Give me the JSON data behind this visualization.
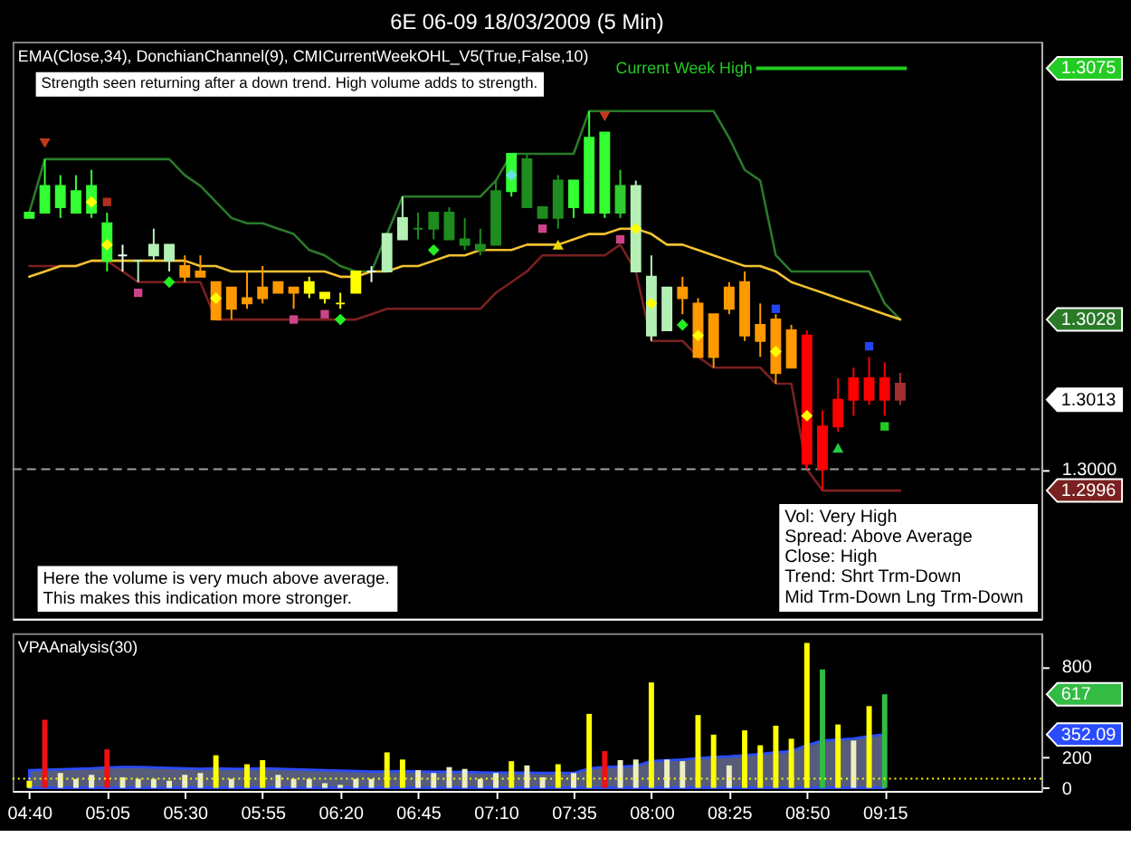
{
  "chart_data": [
    {
      "type": "candlestick",
      "title": "6E 06-09  18/03/2009 (5 Min)",
      "subtitle": "EMA(Close,34), DonchianChannel(9), CMICurrentWeekOHL_V5(True,False,10)",
      "categories": [
        null,
        null,
        null,
        null,
        null,
        null,
        null,
        null,
        null,
        null,
        null,
        null,
        null,
        null,
        null,
        null,
        null,
        null,
        null,
        null,
        null,
        null,
        null,
        null,
        null,
        null,
        null,
        null,
        null,
        null,
        null,
        null,
        null,
        null,
        null,
        null,
        null,
        null,
        null,
        null,
        null,
        null,
        null,
        null,
        null,
        null,
        null,
        null,
        null,
        null,
        null,
        null,
        null,
        null,
        null,
        null,
        null,
        null,
        null,
        null,
        null,
        null,
        null,
        null,
        null
      ],
      "ohlc": [
        [
          1.3047,
          1.3048,
          1.3047,
          1.3048
        ],
        [
          1.3048,
          1.3058,
          1.3048,
          1.3053
        ],
        [
          1.3049,
          1.3055,
          1.3047,
          1.3053
        ],
        [
          1.3048,
          1.3055,
          1.3048,
          1.3052
        ],
        [
          1.3048,
          1.3056,
          1.3047,
          1.3053
        ],
        [
          1.3039,
          1.3048,
          1.3037,
          1.3046
        ],
        [
          1.304,
          1.3042,
          1.3037,
          1.304
        ],
        [
          1.3039,
          1.3039,
          1.3035,
          1.3039
        ],
        [
          1.304,
          1.3045,
          1.3039,
          1.3042
        ],
        [
          1.3039,
          1.3042,
          1.3037,
          1.3042
        ],
        [
          1.3038,
          1.304,
          1.3035,
          1.3036
        ],
        [
          1.3037,
          1.304,
          1.3036,
          1.3036
        ],
        [
          1.3035,
          1.3035,
          1.3028,
          1.3028
        ],
        [
          1.3034,
          1.3034,
          1.3028,
          1.303
        ],
        [
          1.3032,
          1.3037,
          1.303,
          1.3031
        ],
        [
          1.3034,
          1.3038,
          1.3031,
          1.3032
        ],
        [
          1.3035,
          1.3035,
          1.3033,
          1.3033
        ],
        [
          1.3034,
          1.3034,
          1.303,
          1.3033
        ],
        [
          1.3035,
          1.3036,
          1.3032,
          1.3033
        ],
        [
          1.3033,
          1.3033,
          1.3031,
          1.3032
        ],
        [
          1.3031,
          1.3033,
          1.303,
          1.3031
        ],
        [
          1.3037,
          1.3037,
          1.3033,
          1.3033
        ],
        [
          1.3037,
          1.3038,
          1.3035,
          1.3037
        ],
        [
          1.3037,
          1.3044,
          1.3037,
          1.3044
        ],
        [
          1.3043,
          1.3051,
          1.3043,
          1.3047
        ],
        [
          1.3045,
          1.3048,
          1.3043,
          1.3045
        ],
        [
          1.3045,
          1.3048,
          1.3043,
          1.3048
        ],
        [
          1.3043,
          1.3049,
          1.3043,
          1.3048
        ],
        [
          1.3042,
          1.3047,
          1.3041,
          1.3043
        ],
        [
          1.3041,
          1.3045,
          1.304,
          1.3042
        ],
        [
          1.3042,
          1.3054,
          1.3042,
          1.3052
        ],
        [
          1.3052,
          1.3059,
          1.3051,
          1.3059
        ],
        [
          1.3049,
          1.3059,
          1.3049,
          1.3058
        ],
        [
          1.3047,
          1.3049,
          1.3047,
          1.3049
        ],
        [
          1.3047,
          1.3055,
          1.3045,
          1.3054
        ],
        [
          1.3049,
          1.3054,
          1.3047,
          1.3054
        ],
        [
          1.3048,
          1.3067,
          1.3048,
          1.3062
        ],
        [
          1.3048,
          1.3063,
          1.3047,
          1.3063
        ],
        [
          1.3048,
          1.3056,
          1.3047,
          1.3053
        ],
        [
          1.3037,
          1.3054,
          1.3037,
          1.3053
        ],
        [
          1.3025,
          1.304,
          1.3024,
          1.3036
        ],
        [
          1.3026,
          1.3034,
          1.3026,
          1.3034
        ],
        [
          1.3034,
          1.3036,
          1.3029,
          1.3032
        ],
        [
          1.3031,
          1.3032,
          1.3021,
          1.3021
        ],
        [
          1.3029,
          1.3029,
          1.3019,
          1.3021
        ],
        [
          1.3034,
          1.3035,
          1.3029,
          1.303
        ],
        [
          1.3035,
          1.3037,
          1.3024,
          1.3025
        ],
        [
          1.3027,
          1.3031,
          1.3021,
          1.3024
        ],
        [
          1.3028,
          1.3029,
          1.3016,
          1.3018
        ],
        [
          1.3026,
          1.3027,
          1.3019,
          1.3019
        ],
        [
          1.3025,
          1.3026,
          1.3,
          1.3001
        ],
        [
          1.3008,
          1.3011,
          1.2996,
          1.3
        ],
        [
          1.3013,
          1.3017,
          1.3007,
          1.3008
        ],
        [
          1.3017,
          1.3019,
          1.301,
          1.3013
        ],
        [
          1.3017,
          1.3021,
          1.3012,
          1.3013
        ],
        [
          1.3017,
          1.302,
          1.301,
          1.3013
        ],
        [
          1.3016,
          1.3018,
          1.3012,
          1.3013
        ],
        null,
        null,
        null,
        null,
        null,
        null,
        null,
        null
      ],
      "colors": [
        "#33ff33",
        "#33ff33",
        "#33ff33",
        "#33ff33",
        "#33ff33",
        "#33ff33",
        "#e6ffe6",
        "#b4f0b4",
        "#b4f0b4",
        "#b4f0b4",
        "#ff9900",
        "#ff9900",
        "#ff9900",
        "#ff9900",
        "#ff9900",
        "#ff9900",
        "#ff9900",
        "#ff9900",
        "#ffff00",
        "#ffff00",
        "#ffff00",
        "#ffff00",
        "#e6ffe6",
        "#b4f0b4",
        "#b4f0b4",
        "#1e8c1e",
        "#1e8c1e",
        "#1e8c1e",
        "#1e8c1e",
        "#1e8c1e",
        "#1e8c1e",
        "#33ff33",
        "#1e8c1e",
        "#1e8c1e",
        "#1e8c1e",
        "#33ff33",
        "#33ff33",
        "#33ff33",
        "#2ecc2e",
        "#b4f0b4",
        "#b4f0b4",
        "#b4f0b4",
        "#ff9900",
        "#ff9900",
        "#ff9900",
        "#ff9900",
        "#ff9900",
        "#ff9900",
        "#ff9900",
        "#ff9900",
        "#ff0000",
        "#ff0000",
        "#ff0000",
        "#ff0000",
        "#ff0000",
        "#ff0000",
        "#a03030",
        null,
        null,
        null,
        null,
        null,
        null,
        null,
        null
      ],
      "series": [
        {
          "type": "line",
          "color": "#2a7a2a",
          "values": [
            1.3048,
            1.3058,
            1.3058,
            1.3058,
            1.3058,
            1.3058,
            1.3058,
            1.3058,
            1.3058,
            1.3058,
            1.3055,
            1.3053,
            1.305,
            1.3047,
            1.3046,
            1.3046,
            1.3045,
            1.3044,
            1.3041,
            1.304,
            1.3038,
            1.3037,
            1.3037,
            1.3044,
            1.3051,
            1.3051,
            1.3051,
            1.3051,
            1.3051,
            1.3051,
            1.3054,
            1.3059,
            1.3059,
            1.3059,
            1.3059,
            1.3059,
            1.3067,
            1.3067,
            1.3067,
            1.3067,
            1.3067,
            1.3067,
            1.3067,
            1.3067,
            1.3067,
            1.3062,
            1.3056,
            1.3054,
            1.304,
            1.3037,
            1.3037,
            1.3037,
            1.3037,
            1.3037,
            1.3037,
            1.3031,
            1.3028,
            null,
            null,
            null,
            null,
            null,
            null,
            null,
            null
          ]
        },
        {
          "type": "line",
          "color": "#7a2020",
          "values": [
            1.3038,
            1.3038,
            1.3038,
            1.3038,
            1.3039,
            1.3039,
            1.3037,
            1.3035,
            1.3035,
            1.3035,
            1.3035,
            1.3035,
            1.3028,
            1.3028,
            1.3028,
            1.3028,
            1.3028,
            1.3028,
            1.3028,
            1.3028,
            1.3028,
            1.3028,
            1.3029,
            1.303,
            1.303,
            1.303,
            1.303,
            1.303,
            1.303,
            1.303,
            1.3033,
            1.3035,
            1.3037,
            1.304,
            1.304,
            1.304,
            1.304,
            1.304,
            1.3042,
            1.3037,
            1.3024,
            1.3024,
            1.3024,
            1.3021,
            1.3019,
            1.3019,
            1.3019,
            1.3019,
            1.3016,
            1.3016,
            1.3,
            1.2996,
            1.2996,
            1.2996,
            1.2996,
            1.2996,
            1.2996,
            null,
            null,
            null,
            null,
            null,
            null,
            null,
            null
          ]
        },
        {
          "type": "line",
          "color": "#f2c230",
          "values": [
            1.3036,
            1.3037,
            1.3038,
            1.3038,
            1.3039,
            1.3039,
            1.3039,
            1.3039,
            1.3039,
            1.3039,
            1.3039,
            1.3038,
            1.3038,
            1.3037,
            1.3037,
            1.3037,
            1.3037,
            1.3037,
            1.3037,
            1.3037,
            1.3036,
            1.3036,
            1.3037,
            1.3037,
            1.3038,
            1.3038,
            1.3039,
            1.304,
            1.304,
            1.3041,
            1.3041,
            1.3041,
            1.3042,
            1.3042,
            1.3042,
            1.3043,
            1.3044,
            1.3044,
            1.3045,
            1.3045,
            1.3044,
            1.3042,
            1.3042,
            1.3041,
            1.304,
            1.3039,
            1.3038,
            1.3038,
            1.3037,
            1.3035,
            1.3034,
            1.3033,
            1.3032,
            1.3031,
            1.303,
            1.3029,
            1.3028,
            null,
            null,
            null,
            null,
            null,
            null,
            null,
            null
          ]
        },
        {
          "type": "scatter",
          "marker": "diamond",
          "color": "#ffff00",
          "values": [
            null,
            null,
            null,
            null,
            1.305,
            1.3042,
            null,
            null,
            null,
            null,
            null,
            null,
            1.3032,
            null,
            null,
            null,
            null,
            null,
            null,
            null,
            null,
            null,
            null,
            null,
            null,
            null,
            null,
            null,
            null,
            null,
            null,
            null,
            null,
            null,
            null,
            null,
            null,
            null,
            null,
            1.3045,
            1.3031,
            null,
            null,
            1.3025,
            null,
            null,
            null,
            null,
            1.3022,
            null,
            1.301,
            null,
            null,
            null,
            null,
            null,
            null,
            null,
            null,
            null,
            null,
            null,
            null,
            null,
            null
          ]
        },
        {
          "type": "scatter",
          "marker": "diamond",
          "color": "#22ee22",
          "values": [
            null,
            null,
            null,
            null,
            null,
            null,
            null,
            null,
            null,
            1.3035,
            null,
            null,
            null,
            null,
            null,
            null,
            null,
            null,
            null,
            null,
            1.3028,
            null,
            null,
            null,
            null,
            null,
            1.3041,
            null,
            null,
            null,
            null,
            null,
            null,
            null,
            null,
            null,
            null,
            null,
            null,
            null,
            null,
            null,
            1.3027,
            null,
            null,
            null,
            null,
            null,
            null,
            null,
            null,
            null,
            null,
            null,
            null,
            null,
            null,
            null,
            null,
            null,
            null,
            null,
            null,
            null,
            null
          ]
        },
        {
          "type": "scatter",
          "marker": "square",
          "color": "#cc4488",
          "values": [
            null,
            null,
            null,
            null,
            null,
            null,
            null,
            1.3033,
            null,
            null,
            null,
            null,
            null,
            null,
            null,
            null,
            null,
            1.3028,
            null,
            1.3029,
            null,
            null,
            null,
            null,
            null,
            null,
            null,
            null,
            null,
            null,
            null,
            null,
            null,
            1.3045,
            null,
            null,
            null,
            null,
            1.3043,
            null,
            null,
            null,
            null,
            null,
            null,
            null,
            null,
            null,
            null,
            null,
            null,
            null,
            null,
            null,
            null,
            null,
            null,
            null,
            null,
            null,
            null,
            null,
            null,
            null,
            null
          ]
        },
        {
          "type": "scatter",
          "marker": "square",
          "color": "#b03020",
          "values": [
            null,
            null,
            null,
            null,
            null,
            1.305,
            null,
            null,
            null,
            null,
            null,
            null,
            null,
            null,
            null,
            null,
            null,
            null,
            null,
            null,
            null,
            null,
            null,
            null,
            null,
            null,
            null,
            null,
            null,
            null,
            null,
            null,
            null,
            null,
            null,
            null,
            null,
            null,
            null,
            null,
            null,
            null,
            null,
            null,
            null,
            null,
            null,
            null,
            null,
            null,
            null,
            null,
            null,
            null,
            null,
            null,
            null,
            null,
            null,
            null,
            null,
            null,
            null,
            null,
            null
          ]
        },
        {
          "type": "scatter",
          "marker": "square",
          "color": "#2244ee",
          "values": [
            null,
            null,
            null,
            null,
            null,
            null,
            null,
            null,
            null,
            null,
            null,
            null,
            null,
            null,
            null,
            null,
            null,
            null,
            null,
            null,
            null,
            null,
            null,
            null,
            null,
            null,
            null,
            null,
            null,
            null,
            null,
            null,
            null,
            null,
            null,
            null,
            null,
            null,
            null,
            null,
            null,
            null,
            null,
            null,
            null,
            null,
            null,
            null,
            1.303,
            null,
            null,
            null,
            null,
            null,
            1.3023,
            null,
            null,
            null,
            null,
            null,
            null,
            null,
            null,
            null,
            null
          ]
        },
        {
          "type": "scatter",
          "marker": "square",
          "color": "#22cc22",
          "values": [
            null,
            null,
            null,
            null,
            null,
            null,
            null,
            null,
            null,
            null,
            null,
            null,
            null,
            null,
            null,
            null,
            null,
            null,
            null,
            null,
            null,
            null,
            null,
            null,
            null,
            null,
            null,
            null,
            null,
            null,
            null,
            null,
            null,
            null,
            null,
            null,
            null,
            null,
            null,
            null,
            null,
            null,
            null,
            null,
            null,
            null,
            null,
            null,
            null,
            null,
            null,
            null,
            null,
            null,
            null,
            1.3008,
            null,
            null,
            null,
            null,
            null,
            null,
            null,
            null,
            null
          ]
        },
        {
          "type": "scatter",
          "marker": "triangle",
          "color": "#22cc44",
          "values": [
            null,
            null,
            null,
            null,
            null,
            null,
            null,
            null,
            null,
            null,
            null,
            null,
            null,
            null,
            null,
            null,
            null,
            null,
            null,
            null,
            null,
            null,
            null,
            null,
            null,
            null,
            null,
            null,
            null,
            null,
            null,
            null,
            null,
            null,
            null,
            null,
            null,
            null,
            null,
            null,
            null,
            null,
            null,
            null,
            null,
            null,
            null,
            null,
            null,
            null,
            null,
            null,
            1.3004,
            null,
            null,
            null,
            null,
            null,
            null,
            null,
            null,
            null,
            null,
            null,
            null
          ]
        },
        {
          "type": "scatter",
          "marker": "triangle-down",
          "color": "#c03a1a",
          "values": [
            null,
            1.3061,
            null,
            null,
            null,
            null,
            null,
            null,
            null,
            null,
            null,
            null,
            null,
            null,
            null,
            null,
            null,
            null,
            null,
            null,
            null,
            null,
            null,
            null,
            null,
            null,
            null,
            null,
            null,
            null,
            null,
            null,
            null,
            null,
            null,
            null,
            null,
            1.3066,
            null,
            null,
            null,
            null,
            null,
            null,
            null,
            null,
            null,
            null,
            null,
            null,
            null,
            null,
            null,
            null,
            null,
            null,
            null,
            null,
            null,
            null,
            null,
            null,
            null,
            null,
            null
          ]
        },
        {
          "type": "scatter",
          "marker": "diamond",
          "color": "#66e0e0",
          "values": [
            null,
            null,
            null,
            null,
            null,
            null,
            null,
            null,
            null,
            null,
            null,
            null,
            null,
            null,
            null,
            null,
            null,
            null,
            null,
            null,
            null,
            null,
            null,
            null,
            null,
            null,
            null,
            null,
            null,
            null,
            null,
            1.3055,
            null,
            null,
            null,
            null,
            null,
            null,
            null,
            null,
            null,
            null,
            null,
            null,
            null,
            null,
            null,
            null,
            null,
            null,
            null,
            null,
            null,
            null,
            null,
            null,
            null,
            null,
            null,
            null,
            null,
            null,
            null,
            null,
            null
          ]
        },
        {
          "type": "scatter",
          "marker": "triangle",
          "color": "#e8d800",
          "values": [
            null,
            null,
            null,
            null,
            null,
            null,
            null,
            null,
            null,
            null,
            null,
            null,
            null,
            null,
            null,
            null,
            null,
            null,
            null,
            null,
            null,
            null,
            null,
            null,
            null,
            null,
            null,
            null,
            null,
            null,
            null,
            null,
            null,
            null,
            1.3042,
            null,
            null,
            null,
            null,
            null,
            null,
            null,
            null,
            null,
            null,
            null,
            null,
            null,
            null,
            null,
            null,
            null,
            null,
            null,
            null,
            null,
            null,
            null,
            null,
            null,
            null,
            null,
            null,
            null,
            null
          ]
        }
      ],
      "ylim": [
        1.2972,
        1.308
      ],
      "yticks": [
        1.2996,
        {
          "value": 1.3,
          "label": "1.3000"
        },
        1.3013,
        1.3028,
        1.3075
      ],
      "ref_lines": [
        {
          "axis": "y",
          "value": 1.3075,
          "label": "Current Week High",
          "color": "#22cc22"
        },
        {
          "axis": "y",
          "value": 1.3,
          "color": "#a0a0a0",
          "line_style": "dashed"
        }
      ],
      "annotations": [
        "Strength seen returning after a down trend. High volume adds to strength.",
        "Here the volume is very much above average.\nThis makes this indication more stronger.",
        "Vol: Very High\nSpread: Above Average\nClose: High\nTrend:  Shrt Trm-Down\nMid Trm-Down  Lng Trm-Down"
      ]
    },
    {
      "type": "bar",
      "title": "VPAAnalysis(30)",
      "categories": [
        "04:40",
        null,
        null,
        null,
        null,
        "05:05",
        null,
        null,
        null,
        null,
        "05:30",
        null,
        null,
        null,
        null,
        "05:55",
        null,
        null,
        null,
        null,
        "06:20",
        null,
        null,
        null,
        null,
        "06:45",
        null,
        null,
        null,
        null,
        "07:10",
        null,
        null,
        null,
        null,
        "07:35",
        null,
        null,
        null,
        null,
        "08:00",
        null,
        null,
        null,
        null,
        "08:25",
        null,
        null,
        null,
        null,
        "08:50",
        null,
        null,
        null,
        null,
        "09:15",
        null,
        null,
        null,
        null,
        null,
        null,
        null,
        null,
        null
      ],
      "series": [
        {
          "type": "bar",
          "values": [
            47,
            449,
            98,
            59,
            86,
            254,
            70,
            59,
            59,
            47,
            86,
            98,
            215,
            59,
            156,
            183,
            86,
            59,
            59,
            31,
            20,
            59,
            59,
            234,
            187,
            117,
            98,
            137,
            125,
            59,
            98,
            176,
            148,
            70,
            156,
            98,
            488,
            242,
            183,
            187,
            695,
            187,
            176,
            480,
            351,
            148,
            379,
            281,
            410,
            324,
            956,
            781,
            418,
            312,
            539,
            617,
            null,
            null,
            null,
            null,
            null,
            null,
            null,
            null,
            null
          ],
          "colors": [
            "#ffff00",
            "#ee1111",
            "#eeeec0",
            "#eeeec0",
            "#eeeec0",
            "#ee1111",
            "#eeeec0",
            "#eeeec0",
            "#eeeec0",
            "#eeeec0",
            "#eeeec0",
            "#eeeec0",
            "#ffff00",
            "#eeeec0",
            "#ffff00",
            "#ffff00",
            "#eeeec0",
            "#eeeec0",
            "#eeeec0",
            "#eeeec0",
            "#eeeec0",
            "#eeeec0",
            "#eeeec0",
            "#ffff00",
            "#ffff00",
            "#eeeec0",
            "#eeeec0",
            "#eeeec0",
            "#eeeec0",
            "#eeeec0",
            "#eeeec0",
            "#ffff00",
            "#eeeec0",
            "#eeeec0",
            "#ffff00",
            "#eeeec0",
            "#ffff00",
            "#ee1111",
            "#eeeec0",
            "#eeeec0",
            "#ffff00",
            "#eeeec0",
            "#eeeec0",
            "#ffff00",
            "#ffff00",
            "#eeeec0",
            "#ffff00",
            "#ffff00",
            "#ffff00",
            "#ffff00",
            "#ffff00",
            "#33bb44",
            "#ffff00",
            "#eeeec0",
            "#ffff00",
            "#33bb44",
            "#eeeec0",
            null,
            null,
            null,
            null,
            null,
            null,
            null,
            null
          ]
        },
        {
          "type": "area",
          "color": "#2a4cff",
          "values": [
            117,
            120,
            123,
            126,
            128,
            135,
            137,
            137,
            135,
            132,
            128,
            126,
            128,
            126,
            126,
            128,
            125,
            122,
            120,
            117,
            114,
            110,
            107,
            108,
            110,
            108,
            106,
            106,
            105,
            102,
            100,
            100,
            100,
            98,
            98,
            98,
            128,
            137,
            140,
            145,
            176,
            182,
            187,
            195,
            203,
            207,
            215,
            222,
            234,
            242,
            281,
            312,
            318,
            325,
            340,
            352.09,
            null,
            null,
            null,
            null,
            null,
            null,
            null,
            null,
            null
          ]
        }
      ],
      "ylim": [
        -20,
        1020
      ],
      "yticks": [
        0,
        200,
        352.09,
        617,
        800
      ],
      "ref_lines": [
        {
          "axis": "y",
          "value": 60,
          "color": "#ffff00",
          "line_style": "dotted"
        }
      ]
    }
  ]
}
